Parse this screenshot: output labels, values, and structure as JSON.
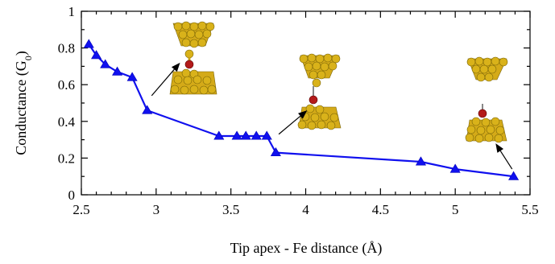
{
  "chart_data": {
    "type": "line",
    "xlabel": "Tip apex - Fe distance (Å)",
    "ylabel_main": "Conductance (G",
    "ylabel_sub": "0",
    "ylabel_close": ")",
    "xlim": [
      2.5,
      5.5
    ],
    "ylim": [
      0,
      1
    ],
    "x_ticks": [
      2.5,
      3,
      3.5,
      4,
      4.5,
      5,
      5.5
    ],
    "x_tick_labels": [
      "2.5",
      "3",
      "3.5",
      "4",
      "4.5",
      "5",
      "5.5"
    ],
    "y_ticks": [
      0,
      0.2,
      0.4,
      0.6,
      0.8,
      1
    ],
    "y_tick_labels": [
      "0",
      "0.2",
      "0.4",
      "0.6",
      "0.8",
      "1"
    ],
    "grid": false,
    "series": [
      {
        "color": "#1010ee",
        "marker": "triangle",
        "x": [
          2.55,
          2.6,
          2.66,
          2.74,
          2.84,
          2.94,
          3.42,
          3.54,
          3.6,
          3.67,
          3.74,
          3.8,
          4.77,
          5.0,
          5.39
        ],
        "y": [
          0.82,
          0.76,
          0.71,
          0.67,
          0.64,
          0.46,
          0.32,
          0.32,
          0.32,
          0.32,
          0.32,
          0.23,
          0.18,
          0.14,
          0.1
        ]
      }
    ],
    "annotations": [
      {
        "kind": "arrow",
        "from": [
          2.97,
          0.54
        ],
        "to": [
          3.16,
          0.72
        ],
        "inset": "junction-compressed"
      },
      {
        "kind": "arrow",
        "from": [
          3.82,
          0.33
        ],
        "to": [
          4.01,
          0.46
        ],
        "inset": "junction-intermediate"
      },
      {
        "kind": "arrow",
        "from": [
          5.38,
          0.14
        ],
        "to": [
          5.27,
          0.28
        ],
        "inset": "junction-stretched"
      }
    ]
  },
  "colors": {
    "series": "#1010ee",
    "gold_atom": "#d9b21a",
    "iron_atom": "#b31a1a"
  }
}
